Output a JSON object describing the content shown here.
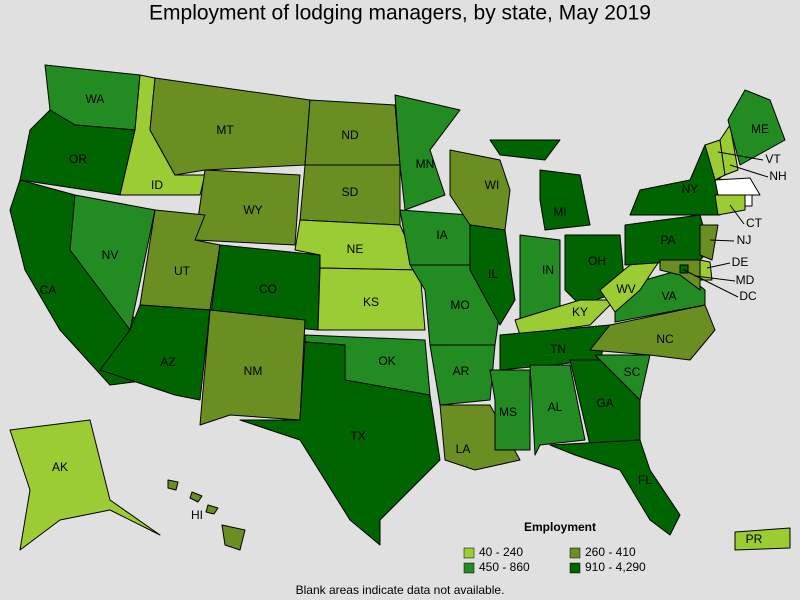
{
  "title": "Employment of lodging managers, by state, May 2019",
  "legend": {
    "title": "Employment",
    "items": [
      {
        "label": "40 - 240",
        "color": "#9ccc33"
      },
      {
        "label": "260 - 410",
        "color": "#6b8e23"
      },
      {
        "label": "450 - 860",
        "color": "#228b22"
      },
      {
        "label": "910 - 4,290",
        "color": "#006400"
      }
    ]
  },
  "blank_color": "#ffffff",
  "states": [
    {
      "label": "WA",
      "class": 2
    },
    {
      "label": "OR",
      "class": 3
    },
    {
      "label": "CA",
      "class": 3
    },
    {
      "label": "NV",
      "class": 2
    },
    {
      "label": "ID",
      "class": 0
    },
    {
      "label": "MT",
      "class": 1
    },
    {
      "label": "WY",
      "class": 1
    },
    {
      "label": "UT",
      "class": 1
    },
    {
      "label": "CO",
      "class": 3
    },
    {
      "label": "AZ",
      "class": 3
    },
    {
      "label": "NM",
      "class": 1
    },
    {
      "label": "ND",
      "class": 1
    },
    {
      "label": "SD",
      "class": 1
    },
    {
      "label": "NE",
      "class": 0
    },
    {
      "label": "KS",
      "class": 0
    },
    {
      "label": "OK",
      "class": 2
    },
    {
      "label": "TX",
      "class": 3
    },
    {
      "label": "MN",
      "class": 2
    },
    {
      "label": "IA",
      "class": 2
    },
    {
      "label": "MO",
      "class": 2
    },
    {
      "label": "AR",
      "class": 2
    },
    {
      "label": "LA",
      "class": 1
    },
    {
      "label": "WI",
      "class": 1
    },
    {
      "label": "IL",
      "class": 3
    },
    {
      "label": "MI",
      "class": 3
    },
    {
      "label": "IN",
      "class": 2
    },
    {
      "label": "OH",
      "class": 3
    },
    {
      "label": "KY",
      "class": 0
    },
    {
      "label": "TN",
      "class": 3
    },
    {
      "label": "MS",
      "class": 2
    },
    {
      "label": "AL",
      "class": 2
    },
    {
      "label": "GA",
      "class": 3
    },
    {
      "label": "FL",
      "class": 3
    },
    {
      "label": "SC",
      "class": 2
    },
    {
      "label": "NC",
      "class": 1
    },
    {
      "label": "VA",
      "class": 2
    },
    {
      "label": "WV",
      "class": 0
    },
    {
      "label": "PA",
      "class": 3
    },
    {
      "label": "NY",
      "class": 3
    },
    {
      "label": "VT",
      "class": 0
    },
    {
      "label": "NH",
      "class": 0
    },
    {
      "label": "ME",
      "class": 2
    },
    {
      "class": null
    },
    {
      "class": null
    },
    {
      "label": "CT",
      "class": 0
    },
    {
      "label": "NJ",
      "class": 1
    },
    {
      "label": "DE",
      "class": 0
    },
    {
      "label": "MD",
      "class": 1
    },
    {
      "label": "DC",
      "class": 3
    },
    {
      "label": "AK",
      "class": 0
    },
    {
      "label": "HI",
      "class": 1
    },
    {
      "label": "PR",
      "class": 0
    }
  ],
  "note": "Blank areas indicate data not available."
}
